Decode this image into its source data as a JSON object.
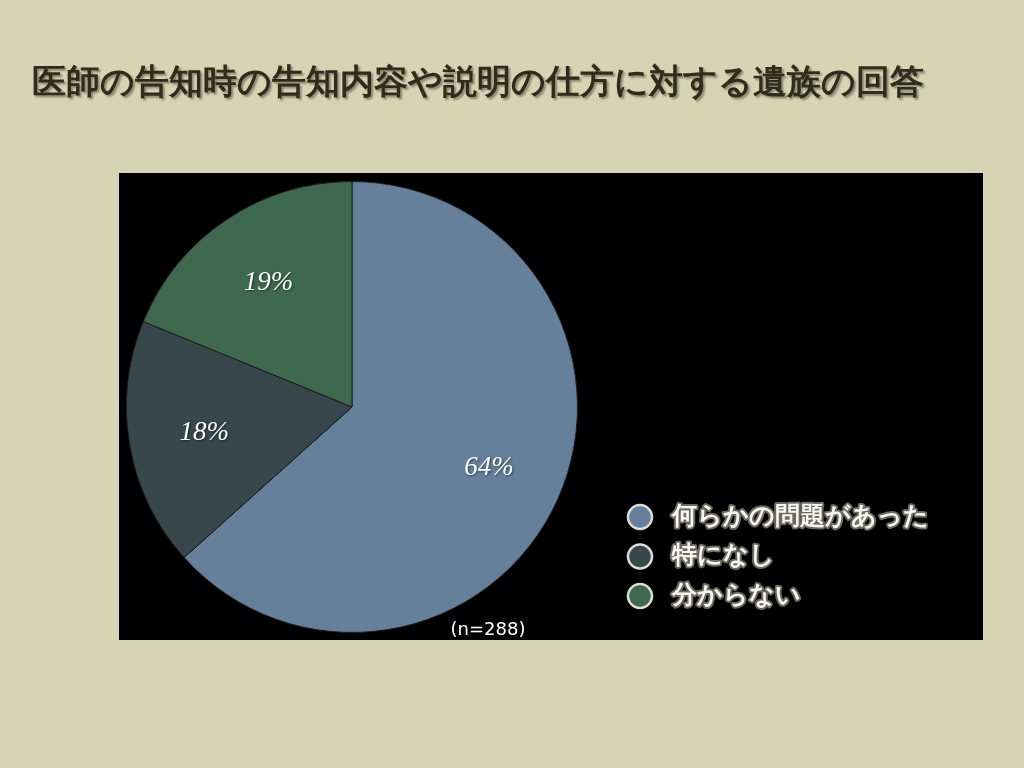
{
  "chart_data": {
    "type": "pie",
    "title": "医師の告知時の告知内容や説明の仕方に対する遺族の回答",
    "categories": [
      "何らかの問題があった",
      "特になし",
      "分からない"
    ],
    "values": [
      64,
      18,
      19
    ],
    "colors": [
      "#66809b",
      "#37474c",
      "#3f694e"
    ],
    "value_labels": [
      "64%",
      "18%",
      "19%"
    ],
    "legend": "bottom right",
    "annotations": [
      "(n=288)"
    ]
  }
}
